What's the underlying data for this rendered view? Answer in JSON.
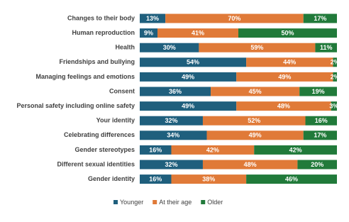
{
  "chart_data": {
    "type": "stacked-bar-horizontal",
    "categories": [
      "Changes to their body",
      "Human reproduction",
      "Health",
      "Friendships and bullying",
      "Managing feelings and emotions",
      "Consent",
      "Personal safety including online safety",
      "Your identity",
      "Celebrating differences",
      "Gender stereotypes",
      "Different sexual identities",
      "Gender identity"
    ],
    "series": [
      {
        "name": "Younger",
        "color": "#1f5f7d",
        "values": [
          13,
          9,
          30,
          54,
          49,
          36,
          49,
          32,
          34,
          16,
          32,
          16
        ],
        "value_labels": [
          "13%",
          "9%",
          "30%",
          "54%",
          "49%",
          "36%",
          "49%",
          "32%",
          "34%",
          "16%",
          "32%",
          "16%"
        ]
      },
      {
        "name": "At their age",
        "color": "#e07a38",
        "values": [
          70,
          41,
          59,
          44,
          49,
          45,
          48,
          52,
          49,
          42,
          48,
          38
        ],
        "value_labels": [
          "70%",
          "41%",
          "59%",
          "44%",
          "49%",
          "45%",
          "48%",
          "52%",
          "49%",
          "42%",
          "48%",
          "38%"
        ]
      },
      {
        "name": "Older",
        "color": "#217a3a",
        "values": [
          17,
          50,
          11,
          2,
          2,
          19,
          3,
          16,
          17,
          42,
          20,
          46
        ],
        "value_labels": [
          "17%",
          "50%",
          "11%",
          "2%",
          "2%",
          "19%",
          "3%",
          "16%",
          "17%",
          "42%",
          "20%",
          "46%"
        ]
      }
    ],
    "xlim": [
      0,
      100
    ],
    "legend": "bottom"
  }
}
